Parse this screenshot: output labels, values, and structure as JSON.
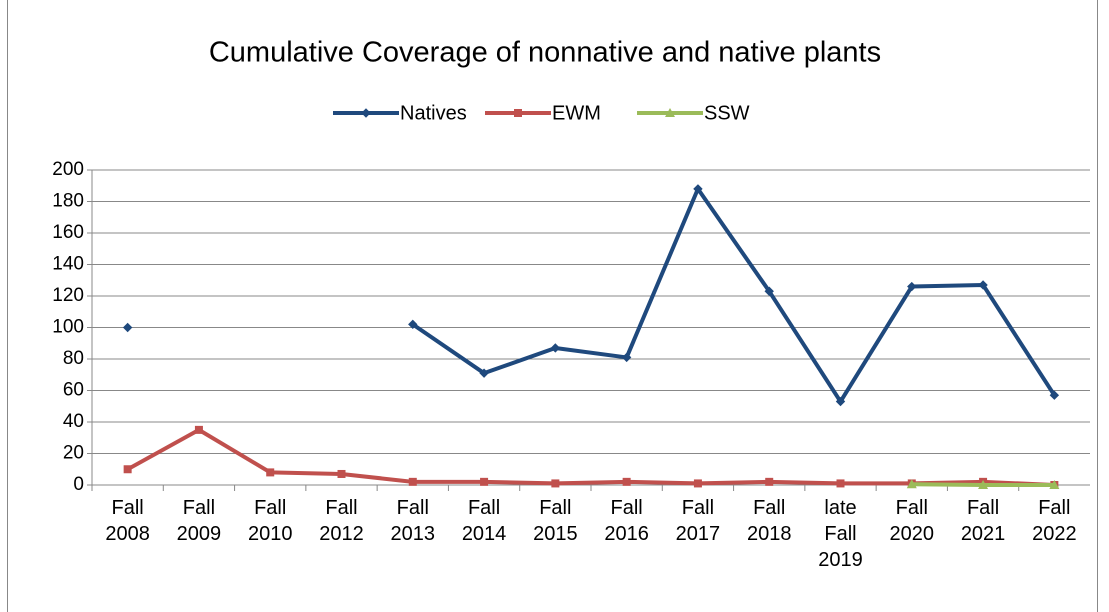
{
  "chart_data": {
    "type": "line",
    "title": "Cumulative Coverage of nonnative and native plants",
    "categories": [
      "Fall 2008",
      "Fall 2009",
      "Fall 2010",
      "Fall 2012",
      "Fall 2013",
      "Fall 2014",
      "Fall 2015",
      "Fall 2016",
      "Fall 2017",
      "Fall 2018",
      "late Fall 2019",
      "Fall 2020",
      "Fall 2021",
      "Fall 2022"
    ],
    "series": [
      {
        "name": "Natives",
        "color": "#1f497d",
        "marker": "diamond",
        "values": [
          100,
          null,
          null,
          null,
          102,
          71,
          87,
          81,
          188,
          123,
          53,
          126,
          127,
          57
        ]
      },
      {
        "name": "EWM",
        "color": "#c0504d",
        "marker": "square",
        "values": [
          10,
          35,
          8,
          7,
          2,
          2,
          1,
          2,
          1,
          2,
          1,
          1,
          2,
          0
        ]
      },
      {
        "name": "SSW",
        "color": "#9bbb59",
        "marker": "triangle",
        "values": [
          null,
          null,
          null,
          null,
          null,
          null,
          null,
          null,
          null,
          null,
          null,
          0.5,
          0,
          0
        ]
      }
    ],
    "ylim": [
      0,
      200
    ],
    "yticks": [
      0,
      20,
      40,
      60,
      80,
      100,
      120,
      140,
      160,
      180,
      200
    ],
    "grid": true,
    "legend": "top"
  }
}
